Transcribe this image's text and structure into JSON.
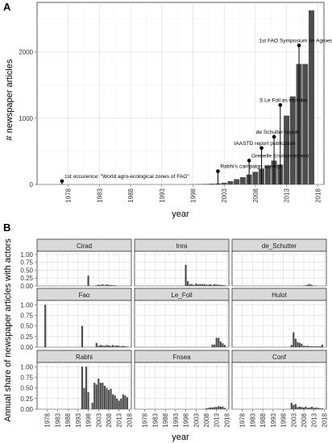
{
  "chart_data": [
    {
      "type": "bar",
      "panel": "A",
      "xlabel": "year",
      "ylabel": "# newspaper articles",
      "xlim": [
        1973,
        2019
      ],
      "ylim": [
        0,
        2750
      ],
      "xticks": [
        1978,
        1983,
        1988,
        1993,
        1998,
        2003,
        2008,
        2013,
        2018
      ],
      "yticks": [
        0,
        1000,
        2000
      ],
      "grid": true,
      "x": [
        1998,
        1999,
        2000,
        2001,
        2002,
        2003,
        2004,
        2005,
        2006,
        2007,
        2008,
        2009,
        2010,
        2011,
        2012,
        2013,
        2014,
        2015,
        2016,
        2017
      ],
      "values": [
        3,
        5,
        8,
        12,
        15,
        25,
        50,
        80,
        110,
        150,
        190,
        240,
        280,
        360,
        300,
        1040,
        1330,
        1820,
        1820,
        2630
      ],
      "annotations": [
        {
          "year": 1977,
          "value": 50,
          "label": "1st occurence: \"World agro-ecological zones of FAO\""
        },
        {
          "year": 2002,
          "value": 200,
          "label": "Rabhi's campaign attempt"
        },
        {
          "year": 2007,
          "value": 360,
          "label": "Grenelle Environnement"
        },
        {
          "year": 2009,
          "value": 550,
          "label": "IAASTD report publication"
        },
        {
          "year": 2011,
          "value": 720,
          "label": "de Schutter report"
        },
        {
          "year": 2012,
          "value": 1200,
          "label": "S Le Foll as minister"
        },
        {
          "year": 2015,
          "value": 2100,
          "label": "1st FAO Symposium on Agroecology"
        }
      ]
    },
    {
      "type": "bar",
      "panel": "B",
      "xlabel": "year",
      "ylabel": "Annual share of newspaper articles with actors",
      "xlim": [
        1973,
        2019
      ],
      "ylim": [
        0,
        1.1
      ],
      "xticks": [
        1978,
        1983,
        1988,
        1993,
        1998,
        2003,
        2008,
        2013,
        2018
      ],
      "yticks": [
        "0.00",
        "0.25",
        "0.50",
        "0.75",
        "1.00"
      ],
      "grid": true,
      "facets": [
        {
          "name": "Cirad",
          "x": [
            1998,
            2002,
            2003,
            2004,
            2005,
            2006,
            2007,
            2008,
            2009,
            2010,
            2011,
            2012
          ],
          "values": [
            0.33,
            0.02,
            0.04,
            0.03,
            0.05,
            0.02,
            0.05,
            0.03,
            0.03,
            0.02,
            0.02,
            0.01
          ]
        },
        {
          "name": "Inra",
          "x": [
            1998,
            1999,
            2000,
            2001,
            2002,
            2003,
            2004,
            2005,
            2006,
            2007,
            2008,
            2009,
            2010,
            2011,
            2012,
            2013,
            2014,
            2015,
            2016,
            2017
          ],
          "values": [
            0.67,
            0.15,
            0.05,
            0.06,
            0.03,
            0.08,
            0.05,
            0.06,
            0.05,
            0.06,
            0.04,
            0.04,
            0.05,
            0.03,
            0.06,
            0.04,
            0.04,
            0.03,
            0.03,
            0.02
          ]
        },
        {
          "name": "de_Schutter",
          "x": [
            2008,
            2009,
            2010,
            2011,
            2012,
            2013,
            2014
          ],
          "values": [
            0.01,
            0.02,
            0.04,
            0.06,
            0.03,
            0.01,
            0.01
          ]
        },
        {
          "name": "Fao",
          "x": [
            1977,
            1995,
            2002,
            2003,
            2004,
            2005,
            2006,
            2007,
            2008,
            2009,
            2010,
            2011,
            2012,
            2013,
            2014,
            2015,
            2016,
            2017
          ],
          "values": [
            1.0,
            0.5,
            0.1,
            0.03,
            0.05,
            0.04,
            0.03,
            0.05,
            0.04,
            0.03,
            0.05,
            0.03,
            0.04,
            0.03,
            0.02,
            0.03,
            0.02,
            0.01
          ]
        },
        {
          "name": "Le_Foll",
          "x": [
            2011,
            2012,
            2013,
            2014,
            2015,
            2016,
            2017
          ],
          "values": [
            0.06,
            0.06,
            0.22,
            0.22,
            0.13,
            0.09,
            0.05
          ]
        },
        {
          "name": "Hulot",
          "x": [
            2002,
            2003,
            2004,
            2005,
            2006,
            2007,
            2008,
            2009,
            2010,
            2011,
            2012,
            2013,
            2014,
            2015,
            2016,
            2017
          ],
          "values": [
            0.05,
            0.35,
            0.2,
            0.12,
            0.1,
            0.08,
            0.03,
            0.03,
            0.03,
            0.02,
            0.02,
            0.02,
            0.02,
            0.02,
            0.02,
            0.06
          ]
        },
        {
          "name": "Rabhi",
          "x": [
            1995,
            1996,
            1997,
            1998,
            2000,
            2001,
            2002,
            2003,
            2004,
            2005,
            2006,
            2007,
            2008,
            2009,
            2010,
            2011,
            2012,
            2013,
            2014,
            2015,
            2016,
            2017
          ],
          "values": [
            1.0,
            0.5,
            1.0,
            0.4,
            0.15,
            0.62,
            0.58,
            0.72,
            0.62,
            0.62,
            0.55,
            0.5,
            0.45,
            0.48,
            0.35,
            0.32,
            0.25,
            0.2,
            0.25,
            0.35,
            0.32,
            0.28
          ]
        },
        {
          "name": "Fnsea",
          "x": [
            2008,
            2009,
            2010,
            2011,
            2012,
            2013,
            2014,
            2015,
            2016,
            2017
          ],
          "values": [
            0.02,
            0.03,
            0.04,
            0.04,
            0.05,
            0.05,
            0.07,
            0.06,
            0.06,
            0.03
          ]
        },
        {
          "name": "Conf",
          "x": [
            2002,
            2003,
            2004,
            2005,
            2006,
            2007,
            2008,
            2009,
            2010,
            2011,
            2012,
            2013,
            2014,
            2015,
            2016,
            2017
          ],
          "values": [
            0.15,
            0.1,
            0.12,
            0.05,
            0.06,
            0.05,
            0.04,
            0.06,
            0.03,
            0.04,
            0.06,
            0.03,
            0.04,
            0.03,
            0.02,
            0.02
          ]
        }
      ]
    }
  ],
  "labels": {
    "panel_a": "A",
    "panel_b": "B"
  }
}
